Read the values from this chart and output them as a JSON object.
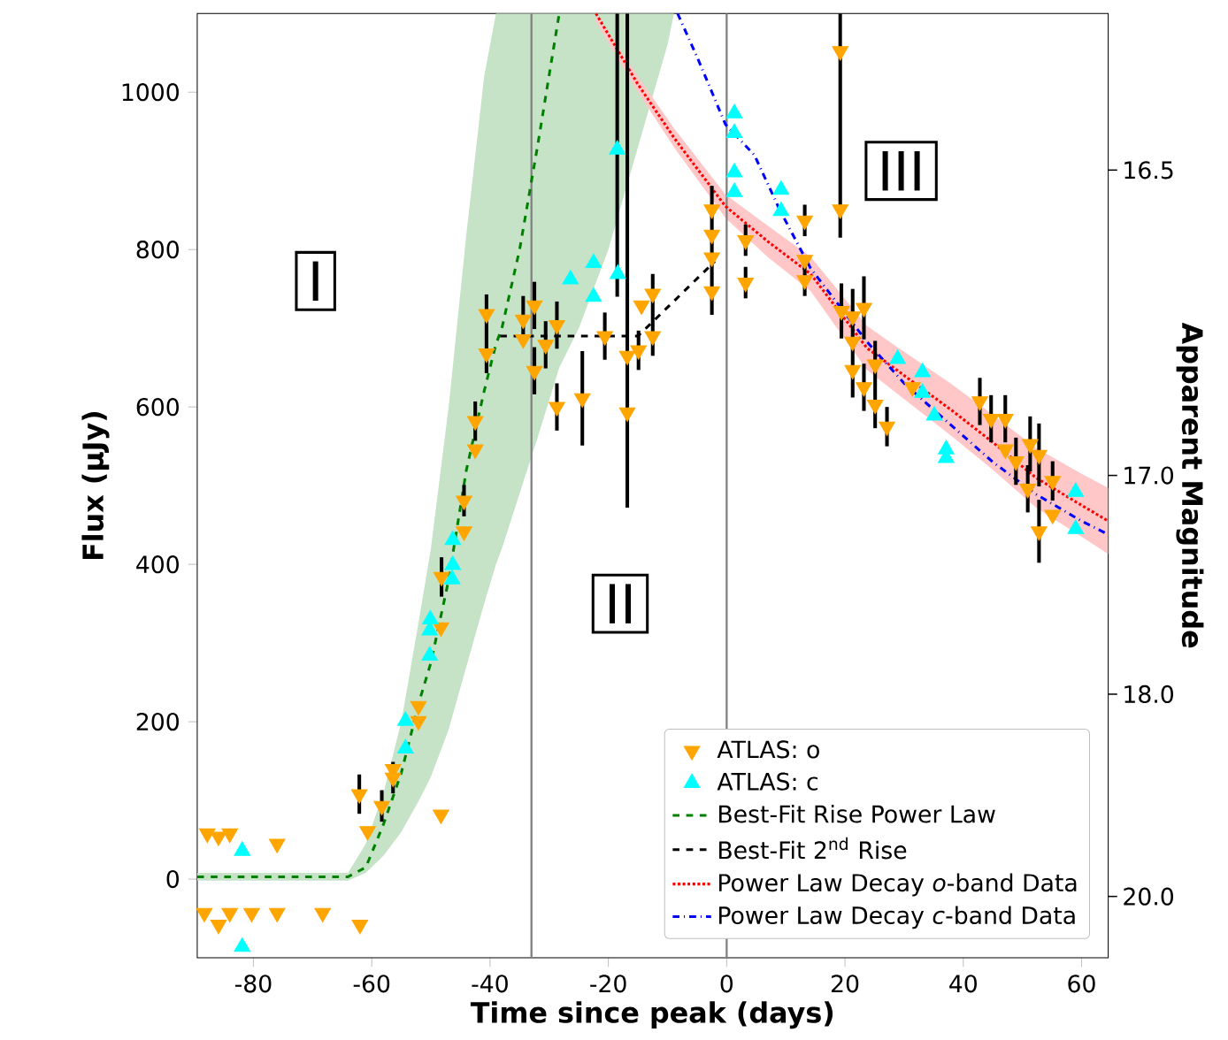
{
  "chart_data": {
    "type": "scatter",
    "xlabel": "Time since peak (days)",
    "ylabel": "Flux (μJy)",
    "y2label": "Apparent Magnitude",
    "xlim": [
      -89.5,
      64.5
    ],
    "ylim": [
      -100,
      1100
    ],
    "xticks": [
      -80,
      -60,
      -40,
      -20,
      0,
      20,
      40,
      60
    ],
    "yticks": [
      0,
      200,
      400,
      600,
      800,
      1000
    ],
    "legend": "bottom right",
    "ref_lines": [
      {
        "axis": "x",
        "value": -33,
        "color": "#808080"
      },
      {
        "axis": "x",
        "value": 0,
        "color": "#808080"
      }
    ],
    "annotations": [
      "I",
      "II",
      "III",
      "16.5",
      "17.0",
      "18.0",
      "20.0"
    ],
    "series": [
      {
        "name": "ATLAS: o",
        "type": "scatter",
        "marker": "triangle_down",
        "color": "#ffa500",
        "x": [
          -87.8,
          -88.3,
          -85.9,
          -85.9,
          -84,
          -84,
          -80.3,
          -76,
          -76,
          -68.3,
          -62,
          -62.1,
          -60.7,
          -58.3,
          -56.4,
          -56.4,
          -52.1,
          -52.1,
          -48.3,
          -48.3,
          -48.2,
          -44.4,
          -44.4,
          -42.5,
          -42.5,
          -40.6,
          -40.6,
          -34.4,
          -34.4,
          -32.5,
          -32.5,
          -30.6,
          -28.7,
          -28.7,
          -24.4,
          -20.6,
          -16.8,
          -16.8,
          -14.9,
          -14.4,
          -12.5,
          -12.5,
          -2.5,
          -2.5,
          -2.5,
          -2.5,
          3.2,
          3.2,
          13.2,
          13.2,
          13.2,
          19.2,
          19.2,
          19.4,
          21.3,
          23.2,
          21.3,
          21.3,
          23.2,
          25.1,
          25.1,
          27.1,
          31.4,
          42.8,
          44.7,
          47.1,
          47.1,
          48.9,
          51.3,
          52.8,
          50.9,
          52.8,
          55.1,
          55.1
        ],
        "values": [
          58,
          -43,
          54,
          -58,
          58,
          -43,
          -43,
          45,
          -43,
          -43,
          -58,
          108,
          61,
          93,
          129,
          140,
          220,
          201,
          82,
          320,
          384,
          481,
          442,
          582,
          546,
          718,
          668,
          711,
          686,
          729,
          646,
          679,
          704,
          600,
          611,
          690,
          665,
          593,
          672,
          729,
          744,
          690,
          790,
          747,
          851,
          819,
          812,
          758,
          837,
          787,
          761,
          1052,
          851,
          722,
          715,
          726,
          683,
          647,
          625,
          654,
          603,
          575,
          625,
          607,
          585,
          585,
          546,
          531,
          553,
          539,
          496,
          442,
          506,
          463
        ],
        "errors": [
          null,
          null,
          null,
          null,
          null,
          null,
          null,
          null,
          null,
          null,
          null,
          25,
          null,
          20,
          20,
          null,
          null,
          null,
          null,
          null,
          25,
          20,
          null,
          25,
          null,
          [
            643,
            743
          ],
          null,
          30,
          null,
          30,
          30,
          30,
          30,
          30,
          60,
          30,
          null,
          [
            472,
            1100
          ],
          25,
          null,
          [
            665,
            769
          ],
          null,
          null,
          null,
          [
            717,
            881
          ],
          null,
          20,
          20,
          20,
          null,
          20,
          [
            815,
            1100
          ],
          null,
          35,
          [
            612,
            750
          ],
          40,
          null,
          null,
          30,
          [
            573,
            684
          ],
          null,
          25,
          null,
          30,
          30,
          30,
          null,
          30,
          35,
          40,
          30,
          40,
          25,
          null
        ]
      },
      {
        "name": "ATLAS: c",
        "type": "scatter",
        "marker": "triangle",
        "color": "#00ffff",
        "x": [
          -81.9,
          -81.9,
          -54.3,
          -54.3,
          -50.2,
          -50.2,
          -50.1,
          -46.4,
          -46.3,
          -46.3,
          -26.4,
          -22.5,
          -22.5,
          -18.4,
          -18.5,
          1.3,
          1.3,
          1.3,
          1.3,
          9.2,
          9.2,
          28.9,
          33.1,
          33.1,
          35.1,
          37.1,
          37.1,
          59,
          59
        ],
        "values": [
          36,
          -86,
          201,
          166,
          284,
          316,
          330,
          381,
          431,
          399,
          762,
          783,
          740,
          769,
          927,
          973,
          948,
          898,
          873,
          876,
          849,
          661,
          644,
          618,
          589,
          546,
          535,
          492,
          445
        ],
        "errors": [
          null,
          null,
          null,
          null,
          null,
          null,
          null,
          null,
          null,
          null,
          null,
          null,
          null,
          null,
          [
            740,
            1100
          ],
          null,
          null,
          null,
          null,
          null,
          null,
          null,
          null,
          null,
          null,
          null,
          null,
          null,
          null
        ]
      },
      {
        "name": "Best-Fit Rise Power Law",
        "type": "line",
        "line_style": "dashed",
        "color": "#008000",
        "x": [
          -89.5,
          -64,
          -61,
          -58,
          -55,
          -52,
          -50,
          -47,
          -44,
          -41,
          -39,
          -38,
          -35,
          -32,
          -28.3,
          -25,
          -20,
          -15,
          -10,
          -8.9
        ],
        "values": [
          3,
          3,
          15,
          70,
          135,
          225,
          275,
          380,
          520,
          620,
          680,
          700,
          800,
          930,
          1100,
          null,
          null,
          null,
          null,
          null
        ],
        "upper": [
          8,
          8,
          45,
          110,
          200,
          330,
          420,
          600,
          820,
          1020,
          1100,
          1100,
          1100,
          1100,
          1100,
          1100,
          1100,
          1100,
          1100,
          1100
        ],
        "lower": [
          -2,
          -2,
          8,
          30,
          60,
          100,
          130,
          190,
          270,
          350,
          400,
          420,
          490,
          560,
          650,
          700,
          800,
          930,
          1060,
          1100
        ]
      },
      {
        "name": "Best-Fit 2$^{nd}$ Rise",
        "type": "line",
        "line_style": "dashed",
        "color": "#000000",
        "x": [
          -38.3,
          -15,
          -2
        ],
        "values": [
          690,
          690,
          785
        ]
      },
      {
        "name": "Power Law Decay *o*-band Data",
        "type": "line",
        "line_style": "dotted",
        "color": "#ff0000",
        "x": [
          -22.1,
          -15,
          -8.8,
          -0.2,
          7,
          14.2,
          23.7,
          30,
          38,
          45,
          52.3,
          60,
          64.5
        ],
        "values": [
          1100,
          1010,
          941,
          855,
          810,
          769,
          675,
          640,
          596,
          555,
          510,
          475,
          455
        ],
        "upper": [
          1100,
          1020,
          953,
          870,
          830,
          791,
          703,
          670,
          629,
          590,
          548,
          515,
          497
        ],
        "lower": [
          1090,
          1000,
          929,
          840,
          790,
          747,
          647,
          610,
          563,
          520,
          472,
          435,
          413
        ]
      },
      {
        "name": "Power Law Decay *c*-band Data",
        "type": "line",
        "line_style": "dashdot",
        "color": "#0000ff",
        "x": [
          -8.3,
          -4.9,
          -0.2,
          4.7,
          9,
          14.2,
          23.7,
          30,
          36.1,
          45,
          52.3,
          60,
          64.5
        ],
        "values": [
          1100,
          1043,
          959,
          920,
          850,
          776,
          683,
          630,
          589,
          530,
          489,
          455,
          438
        ]
      }
    ]
  }
}
